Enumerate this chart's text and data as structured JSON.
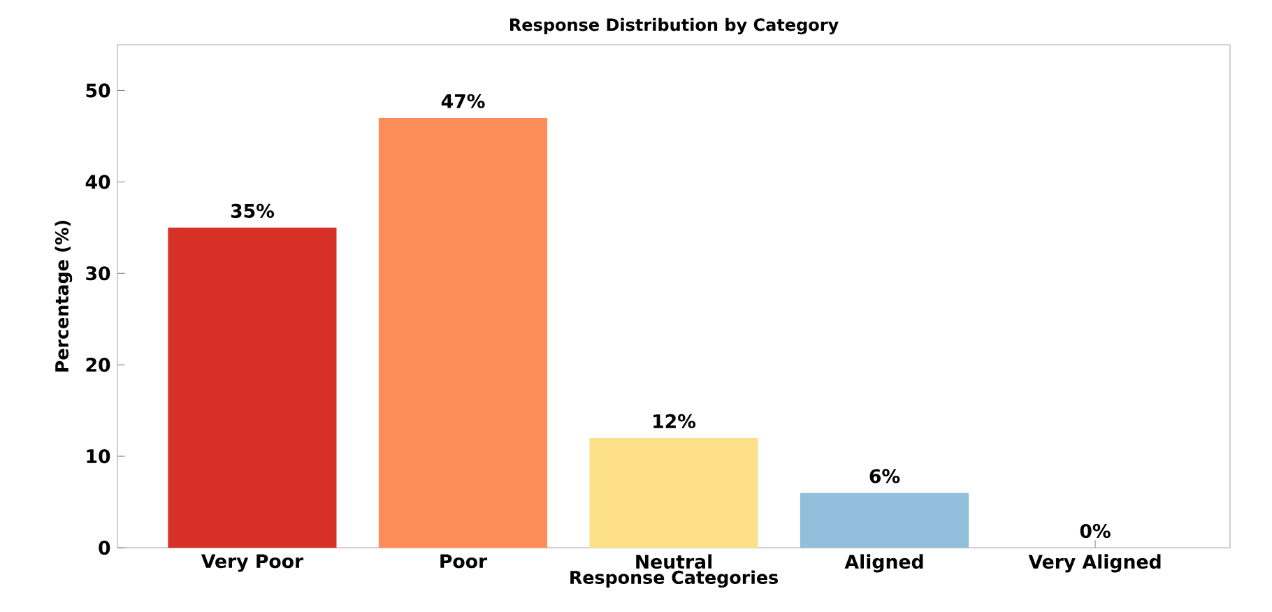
{
  "chart_data": {
    "type": "bar",
    "title": "Response Distribution by Category",
    "xlabel": "Response Categories",
    "ylabel": "Percentage (%)",
    "categories": [
      "Very Poor",
      "Poor",
      "Neutral",
      "Aligned",
      "Very Aligned"
    ],
    "values": [
      35,
      47,
      12,
      6,
      0
    ],
    "colors": [
      "#d73027",
      "#fc8d59",
      "#fee08b",
      "#91bfdb",
      "#4575b4"
    ],
    "value_labels": [
      "35%",
      "47%",
      "12%",
      "6%",
      "0%"
    ],
    "ylim": [
      0,
      55
    ],
    "yticks": [
      0,
      10,
      20,
      30,
      40,
      50
    ]
  }
}
